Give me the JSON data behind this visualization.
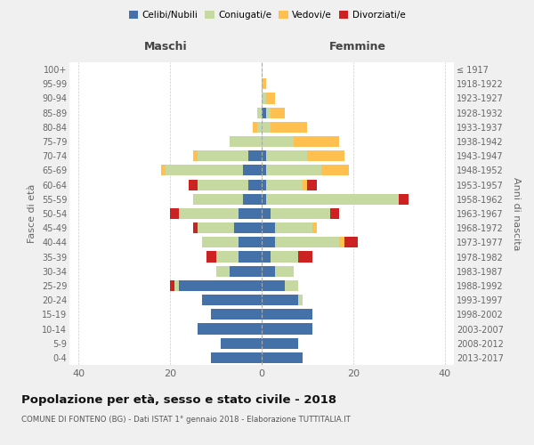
{
  "age_groups": [
    "0-4",
    "5-9",
    "10-14",
    "15-19",
    "20-24",
    "25-29",
    "30-34",
    "35-39",
    "40-44",
    "45-49",
    "50-54",
    "55-59",
    "60-64",
    "65-69",
    "70-74",
    "75-79",
    "80-84",
    "85-89",
    "90-94",
    "95-99",
    "100+"
  ],
  "birth_years": [
    "2013-2017",
    "2008-2012",
    "2003-2007",
    "1998-2002",
    "1993-1997",
    "1988-1992",
    "1983-1987",
    "1978-1982",
    "1973-1977",
    "1968-1972",
    "1963-1967",
    "1958-1962",
    "1953-1957",
    "1948-1952",
    "1943-1947",
    "1938-1942",
    "1933-1937",
    "1928-1932",
    "1923-1927",
    "1918-1922",
    "≤ 1917"
  ],
  "maschi": {
    "celibi": [
      11,
      9,
      14,
      11,
      13,
      18,
      7,
      5,
      5,
      6,
      5,
      4,
      3,
      4,
      3,
      0,
      0,
      0,
      0,
      0,
      0
    ],
    "coniugati": [
      0,
      0,
      0,
      0,
      0,
      1,
      3,
      5,
      8,
      8,
      13,
      11,
      11,
      17,
      11,
      7,
      1,
      1,
      0,
      0,
      0
    ],
    "vedovi": [
      0,
      0,
      0,
      0,
      0,
      0,
      0,
      0,
      0,
      0,
      0,
      0,
      0,
      1,
      1,
      0,
      1,
      0,
      0,
      0,
      0
    ],
    "divorziati": [
      0,
      0,
      0,
      0,
      0,
      1,
      0,
      2,
      0,
      1,
      2,
      0,
      2,
      0,
      0,
      0,
      0,
      0,
      0,
      0,
      0
    ]
  },
  "femmine": {
    "nubili": [
      9,
      8,
      11,
      11,
      8,
      5,
      3,
      2,
      3,
      3,
      2,
      1,
      1,
      1,
      1,
      0,
      0,
      1,
      0,
      0,
      0
    ],
    "coniugate": [
      0,
      0,
      0,
      0,
      1,
      3,
      4,
      6,
      14,
      8,
      13,
      29,
      8,
      12,
      9,
      7,
      2,
      1,
      1,
      0,
      0
    ],
    "vedove": [
      0,
      0,
      0,
      0,
      0,
      0,
      0,
      0,
      1,
      1,
      0,
      0,
      1,
      6,
      8,
      10,
      8,
      3,
      2,
      1,
      0
    ],
    "divorziate": [
      0,
      0,
      0,
      0,
      0,
      0,
      0,
      3,
      3,
      0,
      2,
      2,
      2,
      0,
      0,
      0,
      0,
      0,
      0,
      0,
      0
    ]
  },
  "colors": {
    "celibi_nubili": "#4472a8",
    "coniugati": "#c5d9a0",
    "vedovi": "#ffc050",
    "divorziati": "#cc2222"
  },
  "xlim": 42,
  "title": "Popolazione per età, sesso e stato civile - 2018",
  "subtitle": "COMUNE DI FONTENO (BG) - Dati ISTAT 1° gennaio 2018 - Elaborazione TUTTITALIA.IT",
  "ylabel": "Fasce di età",
  "ylabel_right": "Anni di nascita",
  "maschi_label": "Maschi",
  "femmine_label": "Femmine",
  "bg_color": "#f0f0f0",
  "plot_bg": "#ffffff"
}
